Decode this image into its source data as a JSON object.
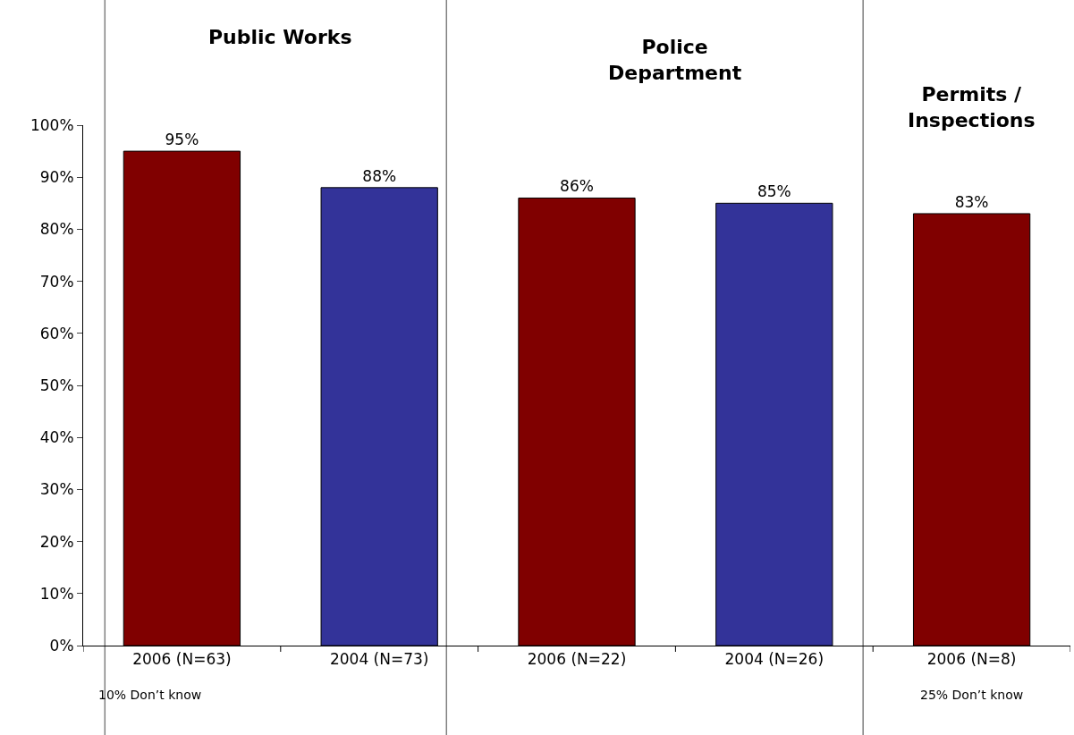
{
  "chart_data": {
    "type": "bar",
    "categories": [
      "2006 (N=63)",
      "2004 (N=73)",
      "2006 (N=22)",
      "2004 (N=26)",
      "2006 (N=8)"
    ],
    "values": [
      95,
      88,
      86,
      85,
      83
    ],
    "colors": [
      "#800000",
      "#333399",
      "#800000",
      "#333399",
      "#800000"
    ],
    "value_labels": [
      "95%",
      "88%",
      "86%",
      "85%",
      "83%"
    ],
    "ylim": [
      0,
      100
    ],
    "yticks": [
      {
        "value": 0,
        "label": "0%"
      },
      {
        "value": 10,
        "label": "10%"
      },
      {
        "value": 20,
        "label": "20%"
      },
      {
        "value": 30,
        "label": "30%"
      },
      {
        "value": 40,
        "label": "40%"
      },
      {
        "value": 50,
        "label": "50%"
      },
      {
        "value": 60,
        "label": "60%"
      },
      {
        "value": 70,
        "label": "70%"
      },
      {
        "value": 80,
        "label": "80%"
      },
      {
        "value": 90,
        "label": "90%"
      },
      {
        "value": 100,
        "label": "100%"
      }
    ],
    "annotations": [
      "Public Works",
      "Police Department",
      "Permits / Inspections",
      "10% Don’t know",
      "25% Don’t know"
    ],
    "grid": false,
    "legend": false
  }
}
